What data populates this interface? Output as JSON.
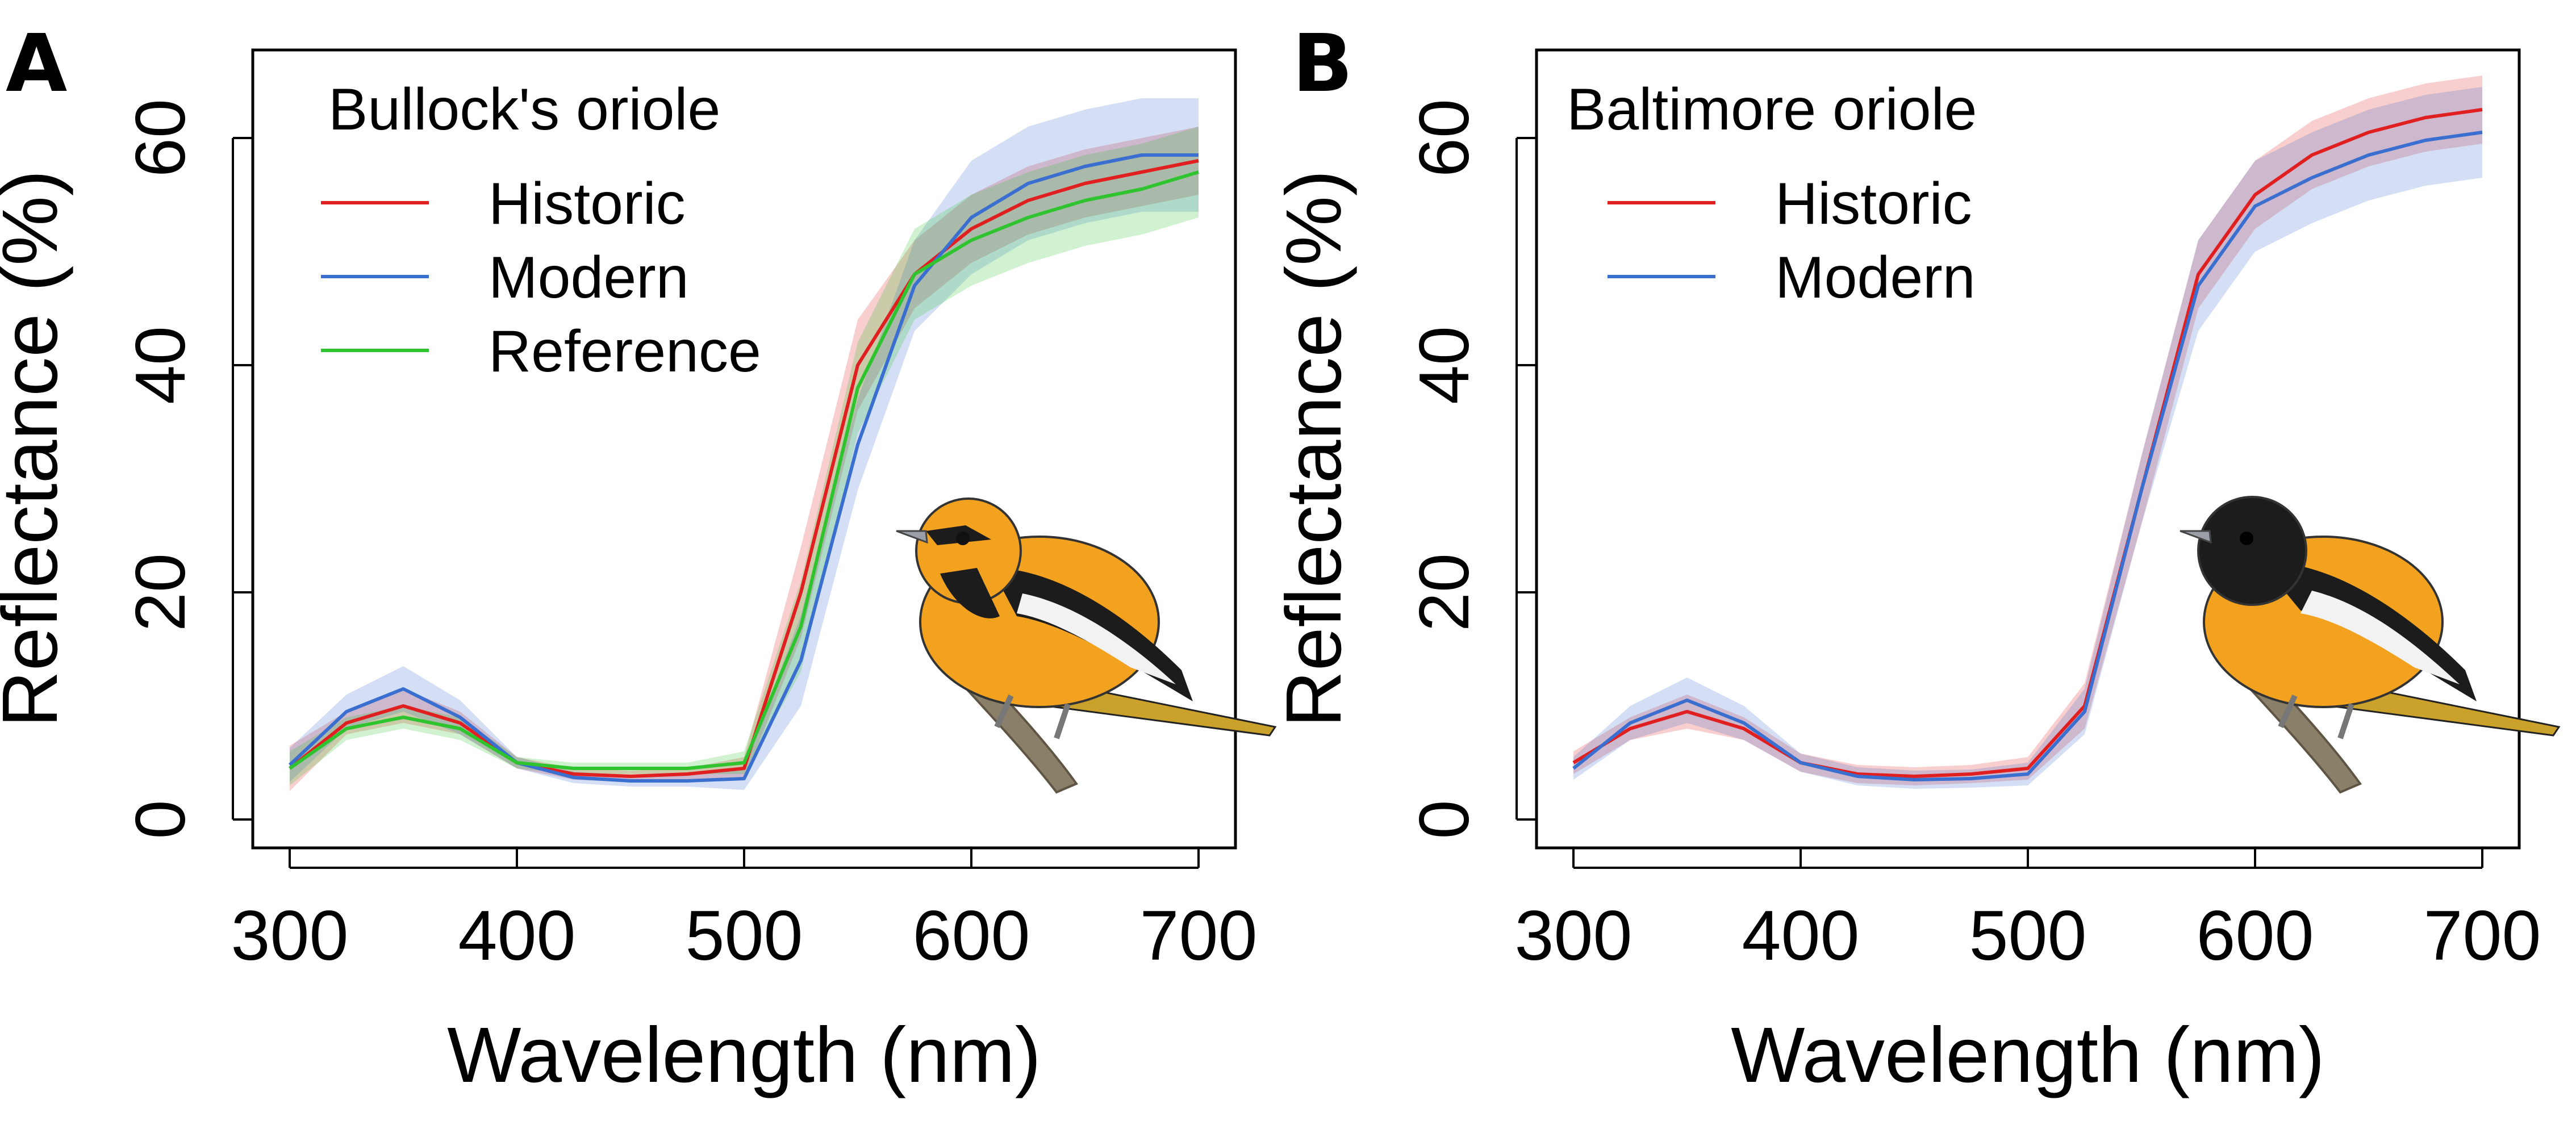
{
  "chart_data": [
    {
      "panel_label": "A",
      "type": "line",
      "title": "Bullock's oriole",
      "xlabel": "Wavelength (nm)",
      "ylabel": "Reflectance (%)",
      "xlim": [
        300,
        700
      ],
      "ylim": [
        0,
        60
      ],
      "xticks": [
        300,
        400,
        500,
        600,
        700
      ],
      "yticks": [
        0,
        20,
        40,
        60
      ],
      "grid": false,
      "legend_position": "top-left",
      "shaded_bands": "variation band around each series",
      "image": "bullocks-oriole-illustration",
      "x": [
        300,
        325,
        350,
        375,
        400,
        425,
        450,
        475,
        500,
        525,
        550,
        575,
        600,
        625,
        650,
        675,
        700
      ],
      "series": [
        {
          "name": "Historic",
          "color": "#e02020",
          "values": [
            4.5,
            8.5,
            10,
            8.5,
            5,
            4,
            3.8,
            4,
            4.5,
            20,
            40,
            48,
            52,
            54.5,
            56,
            57,
            58
          ],
          "band": [
            2,
            1,
            1.5,
            1,
            0.5,
            0.5,
            0.5,
            0.5,
            1,
            4,
            4,
            3,
            3,
            3,
            3,
            3,
            3
          ]
        },
        {
          "name": "Modern",
          "color": "#3a6fd0",
          "values": [
            4.8,
            9.5,
            11.5,
            9,
            5,
            3.7,
            3.4,
            3.4,
            3.6,
            14,
            33,
            47,
            53,
            56,
            57.5,
            58.5,
            58.5
          ],
          "band": [
            1.5,
            1.5,
            2,
            1.5,
            0.5,
            0.5,
            0.5,
            0.5,
            1,
            4,
            4,
            4,
            5,
            5,
            5,
            5,
            5
          ]
        },
        {
          "name": "Reference",
          "color": "#2fc42f",
          "values": [
            4.5,
            8,
            9,
            8,
            5,
            4.5,
            4.5,
            4.5,
            5,
            17,
            38,
            48,
            51,
            53,
            54.5,
            55.5,
            57
          ],
          "band": [
            1.5,
            1,
            1,
            1,
            0.5,
            0.5,
            0.5,
            0.5,
            1,
            4,
            4,
            4,
            4,
            4,
            4,
            4,
            4
          ]
        }
      ]
    },
    {
      "panel_label": "B",
      "type": "line",
      "title": "Baltimore oriole",
      "xlabel": "Wavelength (nm)",
      "ylabel": "Reflectance (%)",
      "xlim": [
        300,
        700
      ],
      "ylim": [
        0,
        60
      ],
      "xticks": [
        300,
        400,
        500,
        600,
        700
      ],
      "yticks": [
        0,
        20,
        40,
        60
      ],
      "grid": false,
      "legend_position": "top-left",
      "shaded_bands": "variation band around each series",
      "image": "baltimore-oriole-illustration",
      "x": [
        300,
        325,
        350,
        375,
        400,
        425,
        450,
        475,
        500,
        525,
        550,
        575,
        600,
        625,
        650,
        675,
        700
      ],
      "series": [
        {
          "name": "Historic",
          "color": "#e02020",
          "values": [
            5,
            8,
            9.5,
            8,
            5,
            4,
            3.8,
            4,
            4.5,
            10,
            29,
            48,
            55,
            58.5,
            60.5,
            61.8,
            62.5
          ],
          "band": [
            1,
            1,
            1.5,
            1,
            0.8,
            0.8,
            0.8,
            0.8,
            1,
            2,
            3,
            3,
            3,
            3,
            3,
            3,
            3
          ]
        },
        {
          "name": "Modern",
          "color": "#3a6fd0",
          "values": [
            4.5,
            8.5,
            10.5,
            8.5,
            5,
            3.8,
            3.5,
            3.6,
            4,
            9.5,
            29,
            47,
            54,
            56.5,
            58.5,
            59.8,
            60.5
          ],
          "band": [
            1,
            1.5,
            2,
            1.5,
            0.8,
            0.8,
            0.8,
            0.8,
            1,
            2,
            3,
            4,
            4,
            4,
            4,
            4,
            4
          ]
        }
      ]
    }
  ]
}
